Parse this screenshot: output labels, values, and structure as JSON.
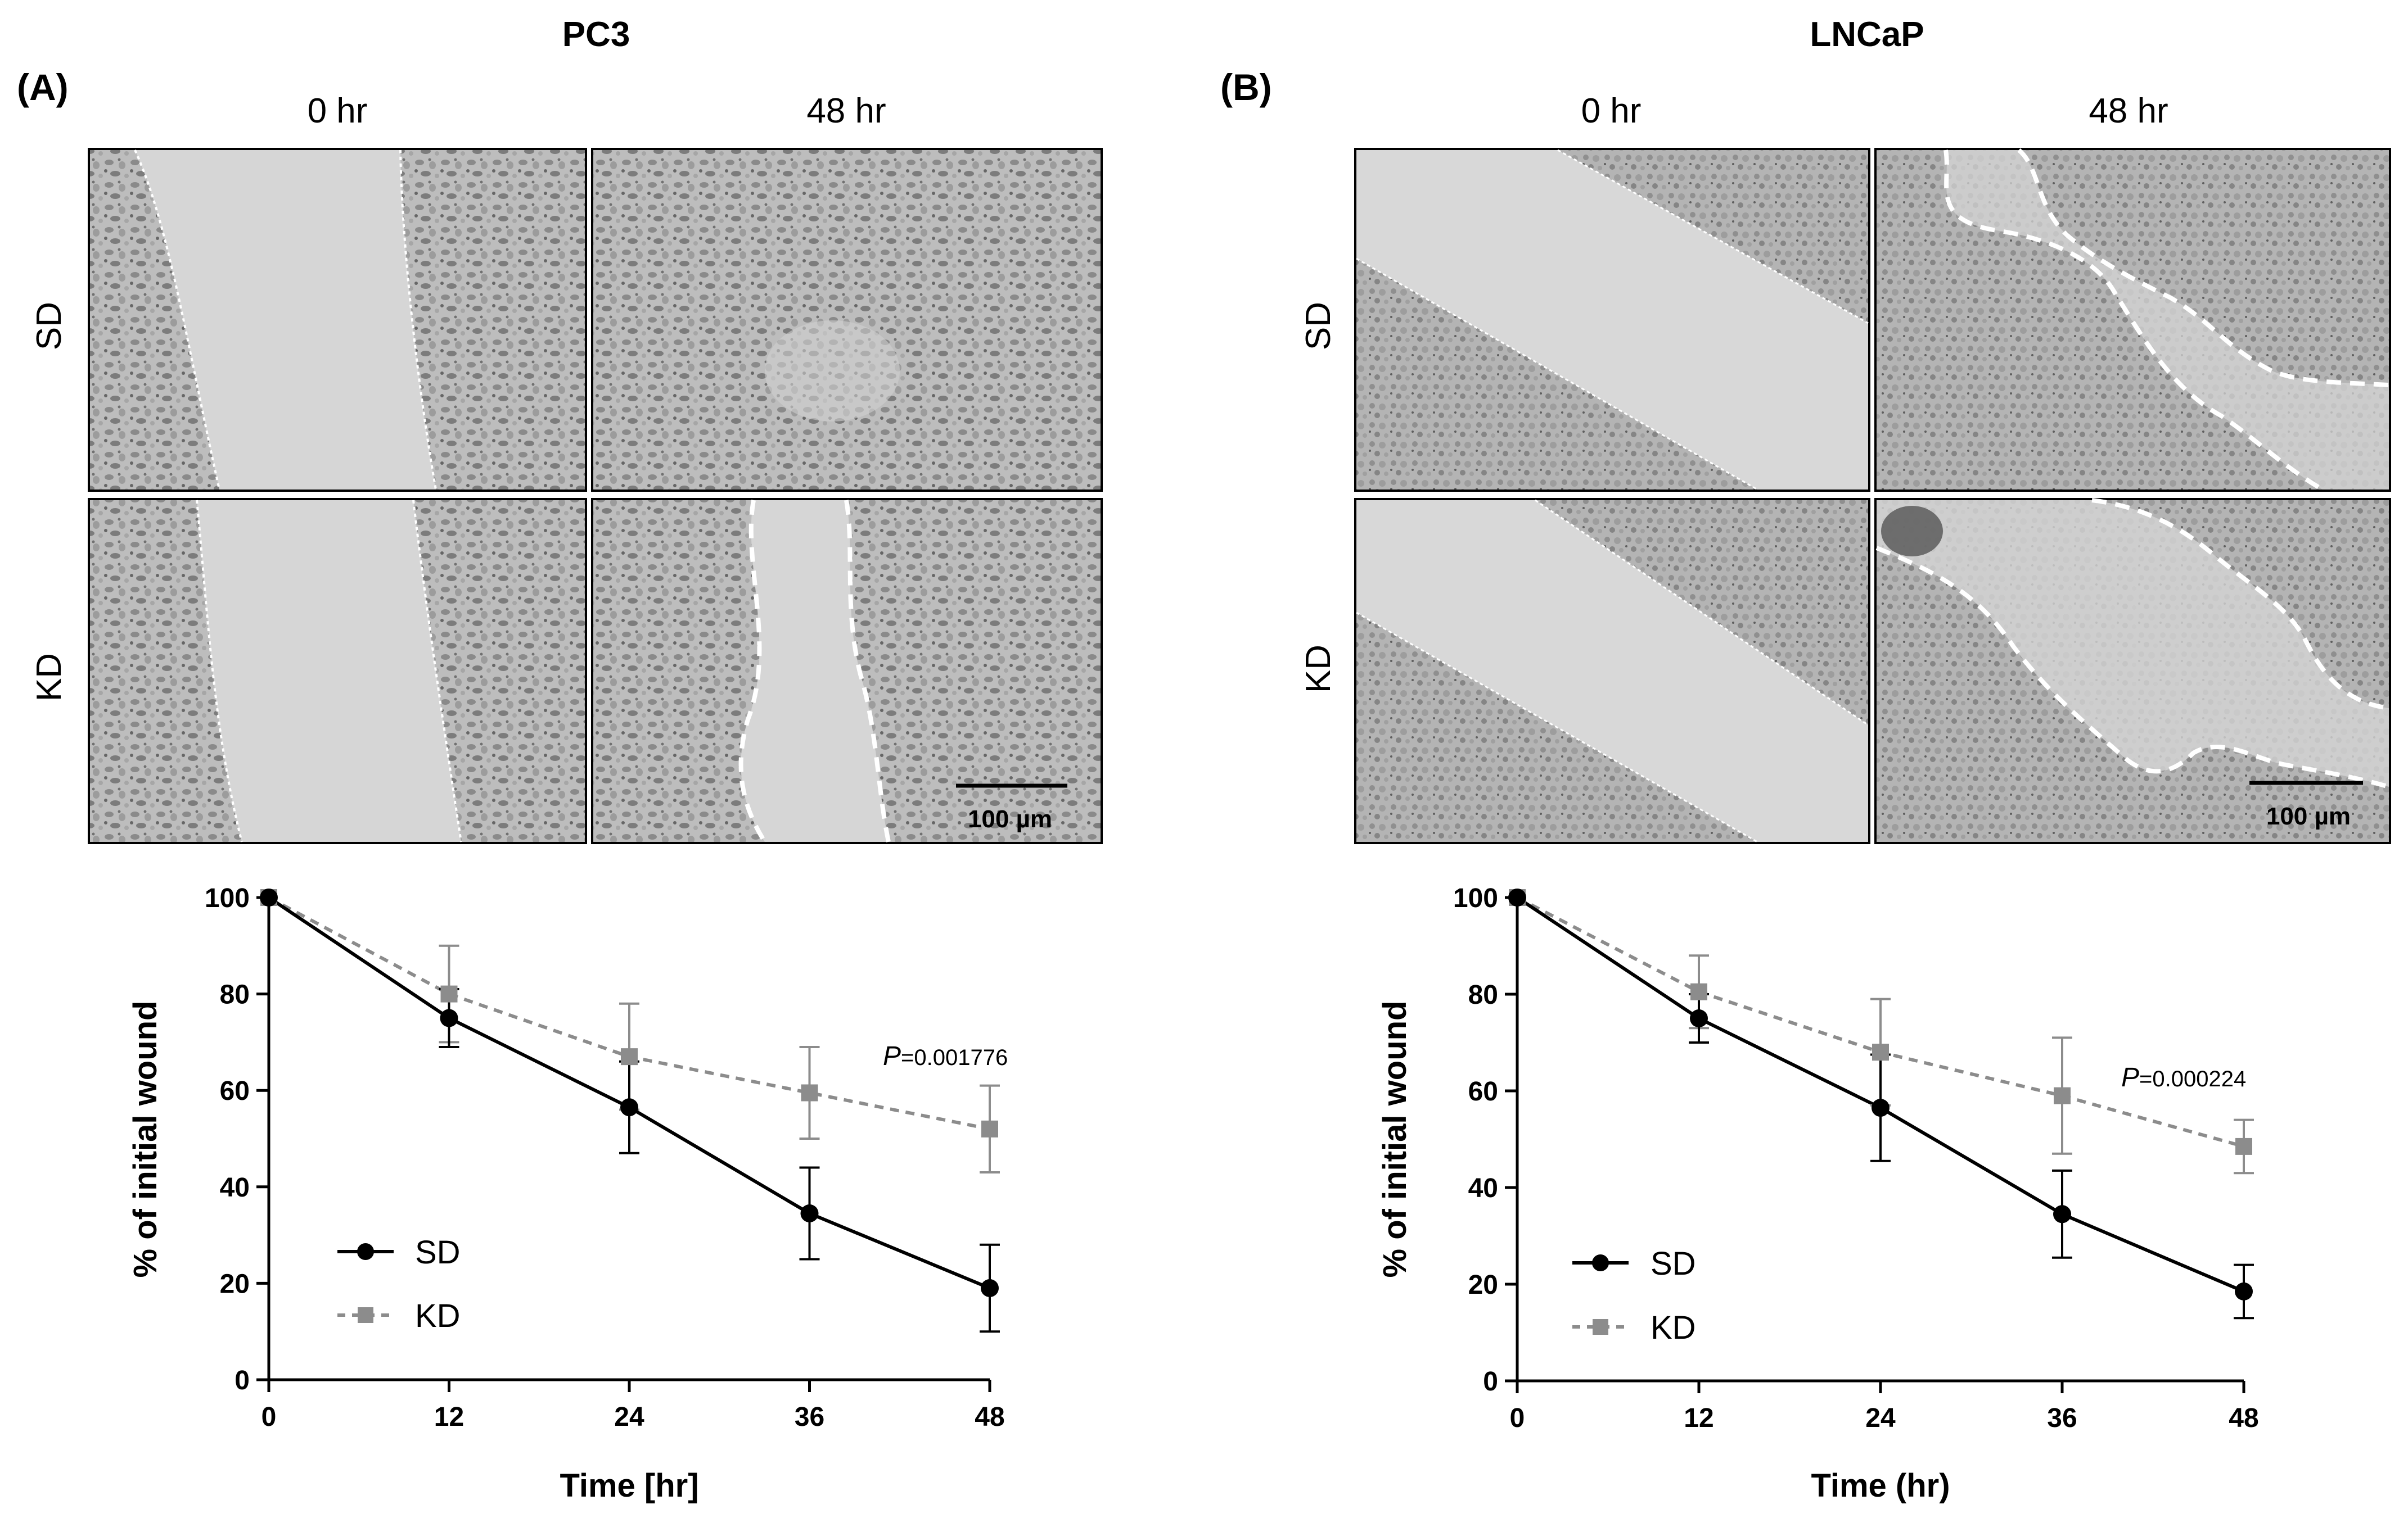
{
  "panels": [
    {
      "letter": "(A)",
      "title": "PC3",
      "col_labels": [
        "0 hr",
        "48 hr"
      ],
      "row_labels": [
        "SD",
        "KD"
      ],
      "scale_bar": "100 µm",
      "pvalue_prefix": "P",
      "pvalue_rest": "=0.001776"
    },
    {
      "letter": "(B)",
      "title": "LNCaP",
      "col_labels": [
        "0 hr",
        "48 hr"
      ],
      "row_labels": [
        "SD",
        "KD"
      ],
      "scale_bar": "100 µm",
      "pvalue_prefix": "P",
      "pvalue_rest": "=0.000224"
    }
  ],
  "colors": {
    "sd": "#000000",
    "kd": "#8c8c8c",
    "micrograph_bg": "#d2d2d2",
    "cell_texture": "#8a8a8a"
  },
  "chart_data": [
    {
      "type": "line",
      "title": "PC3",
      "xlabel": "Time [hr]",
      "ylabel": "% of initial wound",
      "x": [
        0,
        12,
        24,
        36,
        48
      ],
      "xticks": [
        0,
        12,
        24,
        36,
        48
      ],
      "yticks": [
        0,
        20,
        40,
        60,
        80,
        100
      ],
      "xlim": [
        0,
        48
      ],
      "ylim": [
        0,
        100
      ],
      "legend_position": "bottom-left",
      "series": [
        {
          "name": "SD",
          "marker": "circle",
          "line": "solid",
          "values": [
            100,
            75,
            56.5,
            34.5,
            19
          ],
          "errors": [
            0,
            6,
            9.5,
            9.5,
            9
          ]
        },
        {
          "name": "KD",
          "marker": "square",
          "line": "dashed",
          "values": [
            100,
            80,
            67,
            59.5,
            52
          ],
          "errors": [
            0,
            10,
            11,
            9.5,
            9
          ]
        }
      ],
      "annotation": "P=0.001776"
    },
    {
      "type": "line",
      "title": "LNCaP",
      "xlabel": "Time (hr)",
      "ylabel": "% of initial wound",
      "x": [
        0,
        12,
        24,
        36,
        48
      ],
      "xticks": [
        0,
        12,
        24,
        36,
        48
      ],
      "yticks": [
        0,
        20,
        40,
        60,
        80,
        100
      ],
      "xlim": [
        0,
        48
      ],
      "ylim": [
        0,
        100
      ],
      "legend_position": "bottom-left",
      "series": [
        {
          "name": "SD",
          "marker": "circle",
          "line": "solid",
          "values": [
            100,
            75,
            56.5,
            34.5,
            18.5
          ],
          "errors": [
            0,
            5,
            11,
            9,
            5.5
          ]
        },
        {
          "name": "KD",
          "marker": "square",
          "line": "dashed",
          "values": [
            100,
            80.5,
            68,
            59,
            48.5
          ],
          "errors": [
            0,
            7.5,
            11,
            12,
            5.5
          ]
        }
      ],
      "annotation": "P=0.000224"
    }
  ]
}
